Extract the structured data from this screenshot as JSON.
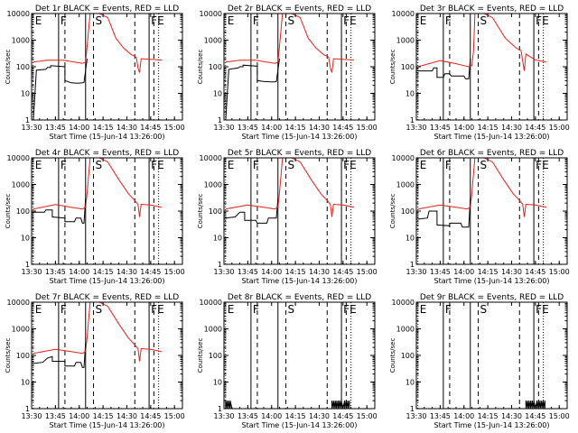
{
  "chart_data": {
    "type": "line",
    "layout": "grid 3x3",
    "y_scale": "log",
    "ylim": [
      1,
      10000
    ],
    "x_range": [
      "13:30",
      "15:05"
    ],
    "yticks": [
      "1",
      "10",
      "100",
      "1000",
      "10000"
    ],
    "xticks": [
      "13:30",
      "13:45",
      "14:00",
      "14:15",
      "14:30",
      "14:45",
      "15:00"
    ],
    "xlabel": "Start Time (15-Jun-14 13:26:00)",
    "ylabel": "Counts/sec",
    "markers": {
      "solid": [
        "13:47",
        "14:04",
        "14:44"
      ],
      "dashed": [
        "13:51",
        "14:09",
        "14:35",
        "14:47"
      ],
      "dotted": [
        "13:31",
        "14:50"
      ]
    },
    "marker_labels": [
      {
        "text": "E",
        "time": "13:31"
      },
      {
        "text": "F",
        "time": "13:47"
      },
      {
        "text": "S",
        "time": "14:09"
      },
      {
        "text": "F",
        "time": "14:44"
      },
      {
        "text": "E",
        "time": "14:48"
      }
    ],
    "series_colors": {
      "events": "#000000",
      "lld": "#e8201c"
    },
    "panels": [
      {
        "title": "Det 1r BLACK = Events, RED = LLD",
        "events": [
          [
            "13:31",
            0
          ],
          [
            "13:33",
            75
          ],
          [
            "13:39",
            80
          ],
          [
            "13:40",
            95
          ],
          [
            "13:42",
            95
          ],
          [
            "13:42",
            110
          ],
          [
            "13:51",
            100
          ],
          [
            "13:51",
            30
          ],
          [
            "13:55",
            25
          ],
          [
            "13:59",
            24
          ],
          [
            "14:02",
            25
          ],
          [
            "14:03",
            26
          ],
          [
            "14:05",
            200
          ]
        ],
        "lld": [
          [
            "13:31",
            150
          ],
          [
            "13:40",
            175
          ],
          [
            "13:50",
            175
          ],
          [
            "14:02",
            135
          ],
          [
            "14:04",
            150
          ],
          [
            "14:05",
            600
          ],
          [
            "14:07",
            12000
          ],
          [
            "14:10",
            12000
          ],
          [
            "14:18",
            7000
          ],
          [
            "14:23",
            1200
          ],
          [
            "14:28",
            500
          ],
          [
            "14:33",
            280
          ],
          [
            "14:35",
            250
          ],
          [
            "14:36",
            220
          ],
          [
            "14:37",
            90
          ],
          [
            "14:38",
            60
          ],
          [
            "14:39",
            200
          ],
          [
            "14:45",
            190
          ],
          [
            "14:52",
            180
          ]
        ]
      },
      {
        "title": "Det 2r BLACK = Events, RED = LLD",
        "events": [
          [
            "13:31",
            0
          ],
          [
            "13:33",
            80
          ],
          [
            "13:39",
            90
          ],
          [
            "13:40",
            100
          ],
          [
            "13:42",
            100
          ],
          [
            "13:42",
            115
          ],
          [
            "13:51",
            105
          ],
          [
            "13:51",
            30
          ],
          [
            "13:55",
            28
          ],
          [
            "13:59",
            27
          ],
          [
            "14:02",
            27
          ],
          [
            "14:03",
            28
          ],
          [
            "14:05",
            200
          ]
        ],
        "lld": [
          [
            "13:31",
            150
          ],
          [
            "13:40",
            175
          ],
          [
            "13:50",
            175
          ],
          [
            "14:02",
            135
          ],
          [
            "14:04",
            150
          ],
          [
            "14:05",
            600
          ],
          [
            "14:07",
            12000
          ],
          [
            "14:10",
            12000
          ],
          [
            "14:18",
            7000
          ],
          [
            "14:23",
            1200
          ],
          [
            "14:28",
            500
          ],
          [
            "14:33",
            280
          ],
          [
            "14:35",
            250
          ],
          [
            "14:36",
            220
          ],
          [
            "14:37",
            90
          ],
          [
            "14:38",
            60
          ],
          [
            "14:39",
            200
          ],
          [
            "14:45",
            190
          ],
          [
            "14:52",
            180
          ]
        ]
      },
      {
        "title": "Det 3r BLACK = Events, RED = LLD",
        "events": [
          [
            "13:31",
            70
          ],
          [
            "13:40",
            70
          ],
          [
            "13:41",
            90
          ],
          [
            "13:43",
            90
          ],
          [
            "13:43",
            40
          ],
          [
            "13:47",
            40
          ],
          [
            "13:48",
            55
          ],
          [
            "13:51",
            55
          ],
          [
            "13:52",
            45
          ],
          [
            "14:00",
            45
          ],
          [
            "14:01",
            35
          ],
          [
            "14:03",
            35
          ],
          [
            "14:04",
            200
          ]
        ],
        "lld": [
          [
            "13:31",
            100
          ],
          [
            "13:45",
            170
          ],
          [
            "13:55",
            130
          ],
          [
            "14:03",
            100
          ],
          [
            "14:05",
            110
          ],
          [
            "14:06",
            400
          ],
          [
            "14:07",
            12000
          ],
          [
            "14:10",
            12000
          ],
          [
            "14:18",
            7000
          ],
          [
            "14:26",
            1200
          ],
          [
            "14:33",
            500
          ],
          [
            "14:36",
            400
          ],
          [
            "14:37",
            160
          ],
          [
            "14:38",
            70
          ],
          [
            "14:39",
            300
          ],
          [
            "14:45",
            180
          ],
          [
            "14:52",
            150
          ]
        ]
      },
      {
        "title": "Det 4r BLACK = Events, RED = LLD",
        "events": [
          [
            "13:31",
            90
          ],
          [
            "13:38",
            90
          ],
          [
            "13:39",
            110
          ],
          [
            "13:43",
            110
          ],
          [
            "13:43",
            60
          ],
          [
            "13:51",
            55
          ],
          [
            "13:51",
            40
          ],
          [
            "13:57",
            40
          ],
          [
            "13:58",
            55
          ],
          [
            "14:01",
            55
          ],
          [
            "14:02",
            35
          ],
          [
            "14:03",
            35
          ],
          [
            "14:04",
            300
          ]
        ],
        "lld": [
          [
            "13:31",
            120
          ],
          [
            "13:45",
            175
          ],
          [
            "13:55",
            140
          ],
          [
            "14:02",
            120
          ],
          [
            "14:04",
            140
          ],
          [
            "14:05",
            500
          ],
          [
            "14:07",
            12000
          ],
          [
            "14:10",
            12000
          ],
          [
            "14:18",
            7000
          ],
          [
            "14:25",
            1500
          ],
          [
            "14:31",
            450
          ],
          [
            "14:35",
            250
          ],
          [
            "14:37",
            180
          ],
          [
            "14:38",
            60
          ],
          [
            "14:39",
            180
          ],
          [
            "14:45",
            170
          ],
          [
            "14:52",
            140
          ]
        ]
      },
      {
        "title": "Det 5r BLACK = Events, RED = LLD",
        "events": [
          [
            "13:31",
            55
          ],
          [
            "13:37",
            60
          ],
          [
            "13:40",
            90
          ],
          [
            "13:43",
            90
          ],
          [
            "13:43",
            45
          ],
          [
            "13:50",
            45
          ],
          [
            "13:51",
            35
          ],
          [
            "13:57",
            35
          ],
          [
            "13:58",
            55
          ],
          [
            "14:03",
            55
          ],
          [
            "14:04",
            300
          ]
        ],
        "lld": [
          [
            "13:31",
            120
          ],
          [
            "13:45",
            170
          ],
          [
            "13:55",
            140
          ],
          [
            "14:02",
            120
          ],
          [
            "14:04",
            140
          ],
          [
            "14:05",
            500
          ],
          [
            "14:07",
            12000
          ],
          [
            "14:10",
            12000
          ],
          [
            "14:18",
            7000
          ],
          [
            "14:25",
            1500
          ],
          [
            "14:31",
            450
          ],
          [
            "14:35",
            250
          ],
          [
            "14:37",
            180
          ],
          [
            "14:38",
            60
          ],
          [
            "14:39",
            180
          ],
          [
            "14:45",
            170
          ],
          [
            "14:52",
            140
          ]
        ]
      },
      {
        "title": "Det 6r BLACK = Events, RED = LLD",
        "events": [
          [
            "13:31",
            50
          ],
          [
            "13:37",
            55
          ],
          [
            "13:38",
            100
          ],
          [
            "13:43",
            100
          ],
          [
            "13:43",
            30
          ],
          [
            "13:51",
            28
          ],
          [
            "13:51",
            35
          ],
          [
            "13:58",
            35
          ],
          [
            "13:59",
            25
          ],
          [
            "14:03",
            25
          ],
          [
            "14:04",
            300
          ]
        ],
        "lld": [
          [
            "13:31",
            120
          ],
          [
            "13:45",
            170
          ],
          [
            "13:55",
            140
          ],
          [
            "14:02",
            120
          ],
          [
            "14:04",
            140
          ],
          [
            "14:05",
            500
          ],
          [
            "14:07",
            12000
          ],
          [
            "14:10",
            12000
          ],
          [
            "14:18",
            7000
          ],
          [
            "14:25",
            1500
          ],
          [
            "14:31",
            450
          ],
          [
            "14:35",
            250
          ],
          [
            "14:37",
            180
          ],
          [
            "14:38",
            60
          ],
          [
            "14:39",
            180
          ],
          [
            "14:45",
            170
          ],
          [
            "14:52",
            140
          ]
        ]
      },
      {
        "title": "Det 7r BLACK = Events, RED = LLD",
        "events": [
          [
            "13:31",
            50
          ],
          [
            "13:37",
            55
          ],
          [
            "13:40",
            80
          ],
          [
            "13:43",
            90
          ],
          [
            "13:43",
            60
          ],
          [
            "13:51",
            60
          ],
          [
            "13:51",
            40
          ],
          [
            "13:57",
            40
          ],
          [
            "13:58",
            55
          ],
          [
            "14:01",
            55
          ],
          [
            "14:02",
            35
          ],
          [
            "14:03",
            35
          ],
          [
            "14:04",
            300
          ]
        ],
        "lld": [
          [
            "13:31",
            120
          ],
          [
            "13:45",
            170
          ],
          [
            "13:55",
            140
          ],
          [
            "14:02",
            120
          ],
          [
            "14:04",
            140
          ],
          [
            "14:05",
            500
          ],
          [
            "14:07",
            12000
          ],
          [
            "14:10",
            12000
          ],
          [
            "14:18",
            7000
          ],
          [
            "14:25",
            1500
          ],
          [
            "14:31",
            450
          ],
          [
            "14:35",
            250
          ],
          [
            "14:37",
            180
          ],
          [
            "14:38",
            60
          ],
          [
            "14:39",
            180
          ],
          [
            "14:45",
            170
          ],
          [
            "14:52",
            140
          ]
        ]
      },
      {
        "title": "Det 8r BLACK = Events, RED = LLD",
        "events": [
          [
            "13:31",
            1
          ],
          [
            "13:31",
            2
          ],
          [
            "13:32",
            1
          ],
          [
            "13:32",
            2
          ],
          [
            "13:33",
            1
          ],
          [
            "13:33",
            2
          ],
          [
            "13:34",
            1
          ],
          [
            "13:34",
            2
          ],
          [
            "13:35",
            1
          ],
          [
            "14:38",
            1
          ],
          [
            "14:38",
            2
          ],
          [
            "14:39",
            1
          ],
          [
            "14:39",
            2
          ],
          [
            "14:40",
            1
          ],
          [
            "14:40",
            2
          ],
          [
            "14:41",
            1
          ],
          [
            "14:41",
            2
          ],
          [
            "14:42",
            1
          ],
          [
            "14:42",
            2
          ],
          [
            "14:43",
            1
          ],
          [
            "14:43",
            2
          ],
          [
            "14:44",
            1
          ],
          [
            "14:44",
            2
          ],
          [
            "14:45",
            1
          ],
          [
            "14:46",
            2
          ],
          [
            "14:46",
            1
          ],
          [
            "14:47",
            2
          ],
          [
            "14:47",
            1
          ],
          [
            "14:48",
            2
          ],
          [
            "14:48",
            1
          ],
          [
            "14:49",
            2
          ],
          [
            "14:49",
            1
          ]
        ],
        "lld": []
      },
      {
        "title": "Det 9r BLACK = Events, RED = LLD",
        "events": [
          [
            "14:39",
            1
          ],
          [
            "14:39",
            2
          ],
          [
            "14:40",
            1
          ],
          [
            "14:40",
            2
          ],
          [
            "14:41",
            1
          ],
          [
            "14:41",
            2
          ],
          [
            "14:42",
            1
          ],
          [
            "14:42",
            2
          ],
          [
            "14:43",
            1
          ],
          [
            "14:43",
            2
          ],
          [
            "14:44",
            1
          ],
          [
            "14:44",
            2
          ],
          [
            "14:45",
            1
          ],
          [
            "14:46",
            2
          ],
          [
            "14:46",
            1
          ],
          [
            "14:47",
            2
          ],
          [
            "14:47",
            1
          ],
          [
            "14:48",
            2
          ],
          [
            "14:48",
            1
          ],
          [
            "14:49",
            2
          ],
          [
            "14:49",
            1
          ],
          [
            "14:50",
            2
          ],
          [
            "14:50",
            1
          ],
          [
            "14:51",
            2
          ],
          [
            "14:51",
            1
          ]
        ],
        "lld": []
      }
    ]
  }
}
